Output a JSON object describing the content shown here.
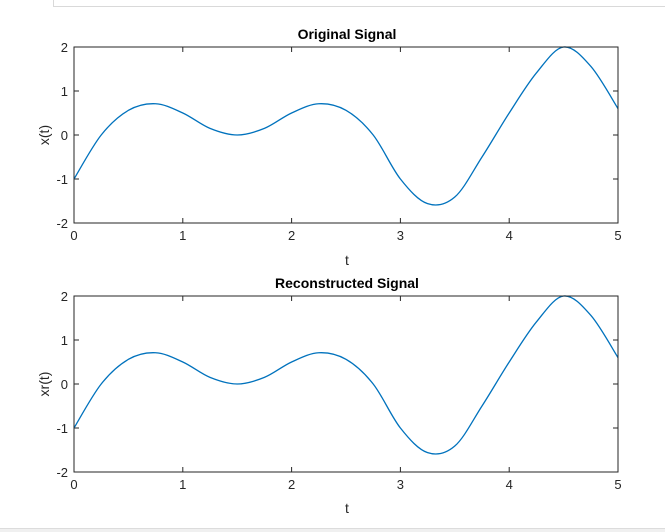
{
  "colors": {
    "line": "#0072BD",
    "axis": "#262626",
    "background": "#ffffff"
  },
  "chart_data": [
    {
      "type": "line",
      "title": "Original Signal",
      "xlabel": "t",
      "ylabel": "x(t)",
      "xlim": [
        0,
        5
      ],
      "ylim": [
        -2,
        2
      ],
      "xticks": [
        "0",
        "1",
        "2",
        "3",
        "4",
        "5"
      ],
      "yticks": [
        "2",
        "1",
        "0",
        "-1",
        "-2"
      ],
      "grid": false,
      "legend": "none",
      "series": [
        {
          "x": [
            0,
            0.25,
            0.5,
            0.75,
            1.0,
            1.25,
            1.5,
            1.75,
            2.0,
            2.25,
            2.5,
            2.75,
            3.0,
            3.25,
            3.5,
            3.75,
            4.0,
            4.25,
            4.5,
            4.75,
            5.0
          ],
          "y": [
            -1.0,
            0.0,
            0.56,
            0.71,
            0.5,
            0.15,
            0.0,
            0.15,
            0.5,
            0.71,
            0.56,
            0.0,
            -1.0,
            -1.56,
            -1.41,
            -0.5,
            0.5,
            1.41,
            2.0,
            1.56,
            0.6
          ]
        }
      ]
    },
    {
      "type": "line",
      "title": "Reconstructed Signal",
      "xlabel": "t",
      "ylabel": "xr(t)",
      "xlim": [
        0,
        5
      ],
      "ylim": [
        -2,
        2
      ],
      "xticks": [
        "0",
        "1",
        "2",
        "3",
        "4",
        "5"
      ],
      "yticks": [
        "2",
        "1",
        "0",
        "-1",
        "-2"
      ],
      "grid": false,
      "legend": "none",
      "series": [
        {
          "x": [
            0,
            0.25,
            0.5,
            0.75,
            1.0,
            1.25,
            1.5,
            1.75,
            2.0,
            2.25,
            2.5,
            2.75,
            3.0,
            3.25,
            3.5,
            3.75,
            4.0,
            4.25,
            4.5,
            4.75,
            5.0
          ],
          "y": [
            -1.0,
            0.0,
            0.56,
            0.71,
            0.5,
            0.15,
            0.0,
            0.15,
            0.5,
            0.71,
            0.56,
            0.0,
            -1.0,
            -1.56,
            -1.41,
            -0.5,
            0.5,
            1.41,
            2.0,
            1.56,
            0.6
          ]
        }
      ]
    }
  ]
}
